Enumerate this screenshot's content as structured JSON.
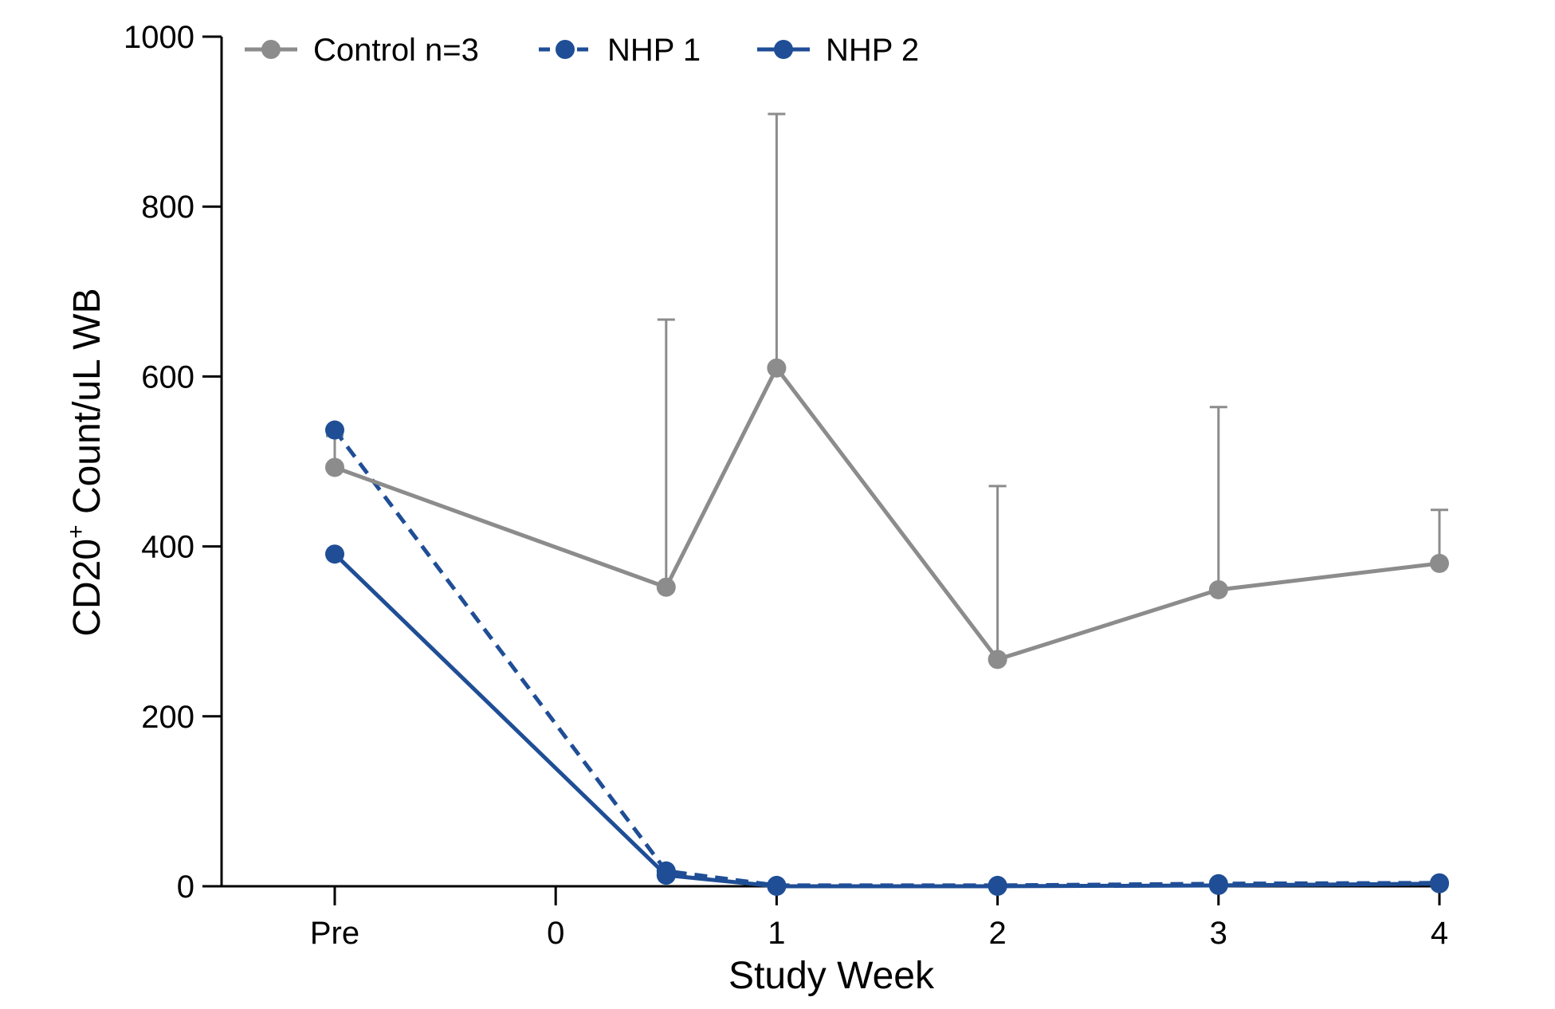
{
  "chart_data": {
    "type": "line",
    "title": "",
    "xlabel": "Study Week",
    "ylabel": {
      "main": "CD20",
      "superscript": "+",
      "rest": " Count/uL WB"
    },
    "categories": [
      "Pre",
      "0",
      "1",
      "2",
      "3",
      "4"
    ],
    "x_tick_positions": [
      -1,
      0,
      1,
      2,
      3,
      4
    ],
    "xlim": [
      -1.5,
      4
    ],
    "ylim": [
      0,
      1000
    ],
    "y_ticks": [
      0,
      200,
      400,
      600,
      800,
      1000
    ],
    "grid": false,
    "legend_position": "top-left",
    "series": [
      {
        "name": "Control n=3",
        "color": "#8c8c8c",
        "line_style": "solid",
        "x": [
          -1,
          0.5,
          1,
          2,
          3,
          4
        ],
        "values": [
          493,
          352,
          610,
          267,
          349,
          380
        ],
        "error_upper": [
          530,
          667,
          909,
          471,
          564,
          443
        ]
      },
      {
        "name": "NHP 1",
        "color": "#1f4e96",
        "line_style": "dashed",
        "x": [
          -1,
          0.5,
          1,
          2,
          3,
          4
        ],
        "values": [
          537,
          18,
          1,
          1,
          3,
          4
        ]
      },
      {
        "name": "NHP 2",
        "color": "#1f4e96",
        "line_style": "solid",
        "x": [
          -1,
          0.5,
          1,
          2,
          3,
          4
        ],
        "values": [
          391,
          13,
          0,
          0,
          1,
          3
        ]
      }
    ]
  }
}
